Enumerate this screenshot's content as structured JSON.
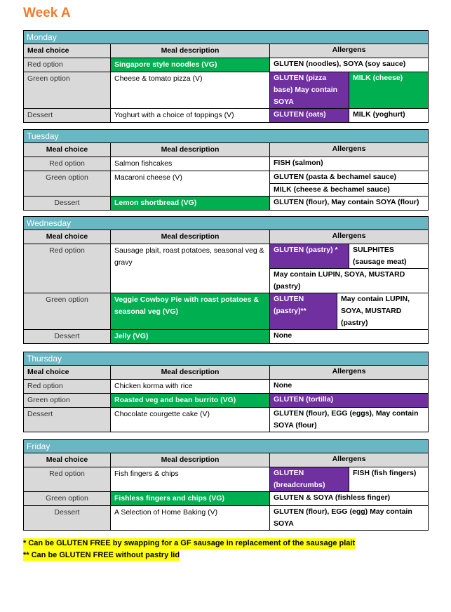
{
  "title": "Week A",
  "columns": [
    "Meal choice",
    "Meal description",
    "Allergens"
  ],
  "colors": {
    "header": "#6ab7c4",
    "purple": "#7030a0",
    "green": "#00b050",
    "title": "#ed7d31",
    "highlight": "#ffff00"
  },
  "days": [
    {
      "name": "Monday",
      "align": "left",
      "rows": [
        {
          "choice": "Red option",
          "desc": "Singapore style noodles (VG)",
          "desc_bg": "green",
          "allergens": [
            [
              {
                "text": "GLUTEN (noodles), SOYA (soy sauce)",
                "bg": "white"
              }
            ]
          ]
        },
        {
          "choice": "Green option",
          "desc": "Cheese & tomato pizza (V)",
          "desc_bg": "white",
          "allergens": [
            [
              {
                "text": "GLUTEN (pizza base) May contain SOYA",
                "bg": "purple"
              },
              {
                "text": "MILK (cheese)",
                "bg": "green"
              }
            ]
          ]
        },
        {
          "choice": "Dessert",
          "desc": "Yoghurt with a choice of toppings (V)",
          "desc_bg": "white",
          "allergens": [
            [
              {
                "text": "GLUTEN (oats)",
                "bg": "purple"
              },
              {
                "text": "MILK (yoghurt)",
                "bg": "white"
              }
            ]
          ]
        }
      ]
    },
    {
      "name": "Tuesday",
      "align": "center",
      "rows": [
        {
          "choice": "Red option",
          "desc": "Salmon fishcakes",
          "desc_bg": "white",
          "allergens": [
            [
              {
                "text": "FISH (salmon)",
                "bg": "white"
              }
            ]
          ]
        },
        {
          "choice": "Green option",
          "desc": "Macaroni cheese (V)",
          "desc_bg": "white",
          "allergens": [
            [
              {
                "text": "GLUTEN (pasta & bechamel sauce)",
                "bg": "white"
              }
            ],
            [
              {
                "text": "MILK (cheese & bechamel sauce)",
                "bg": "white"
              }
            ]
          ]
        },
        {
          "choice": "Dessert",
          "desc": "Lemon shortbread (VG)",
          "desc_bg": "green",
          "allergens": [
            [
              {
                "text": "GLUTEN (flour), May contain SOYA (flour)",
                "bg": "white"
              }
            ]
          ]
        }
      ]
    },
    {
      "name": "Wednesday",
      "align": "center",
      "rows": [
        {
          "choice": "Red option",
          "desc": "Sausage plait, roast potatoes, seasonal veg & gravy",
          "desc_bg": "white",
          "allergens": [
            [
              {
                "text": "GLUTEN (pastry) *",
                "bg": "purple"
              },
              {
                "text": "SULPHITES (sausage meat)",
                "bg": "white"
              }
            ],
            [
              {
                "text": "May contain LUPIN, SOYA, MUSTARD (pastry)",
                "bg": "white"
              }
            ]
          ]
        },
        {
          "choice": "Green option",
          "desc": "Veggie Cowboy Pie with roast potatoes & seasonal veg (VG)",
          "desc_bg": "green",
          "allergens": [
            [
              {
                "text": "GLUTEN (pastry)**",
                "bg": "purple",
                "narrow": true
              },
              {
                "text": "May contain LUPIN, SOYA, MUSTARD (pastry)",
                "bg": "white"
              }
            ]
          ]
        },
        {
          "choice": "Dessert",
          "desc": "Jelly (VG)",
          "desc_bg": "green",
          "allergens": [
            [
              {
                "text": "None",
                "bg": "white"
              }
            ]
          ]
        }
      ]
    },
    {
      "name": "Thursday",
      "align": "left",
      "rows": [
        {
          "choice": "Red option",
          "desc": "Chicken korma with rice",
          "desc_bg": "white",
          "allergens": [
            [
              {
                "text": "None",
                "bg": "white"
              }
            ]
          ]
        },
        {
          "choice": "Green option",
          "desc": "Roasted veg and bean burrito (VG)",
          "desc_bg": "green",
          "allergens": [
            [
              {
                "text": "GLUTEN (tortilla)",
                "bg": "purple"
              }
            ]
          ]
        },
        {
          "choice": "Dessert",
          "desc": "Chocolate courgette cake (V)",
          "desc_bg": "white",
          "allergens": [
            [
              {
                "text": "GLUTEN (flour), EGG (eggs), May contain SOYA (flour)",
                "bg": "white"
              }
            ]
          ]
        }
      ]
    },
    {
      "name": "Friday",
      "align": "center",
      "rows": [
        {
          "choice": "Red option",
          "desc": "Fish fingers & chips",
          "desc_bg": "white",
          "allergens": [
            [
              {
                "text": "GLUTEN (breadcrumbs)",
                "bg": "purple"
              },
              {
                "text": "FISH (fish fingers)",
                "bg": "white"
              }
            ]
          ]
        },
        {
          "choice": "Green option",
          "desc": "Fishless fingers and chips (VG)",
          "desc_bg": "green",
          "allergens": [
            [
              {
                "text": "GLUTEN & SOYA (fishless finger)",
                "bg": "white"
              }
            ]
          ]
        },
        {
          "choice": "Dessert",
          "desc": "A Selection of Home Baking (V)",
          "desc_bg": "white",
          "allergens": [
            [
              {
                "text": "GLUTEN (flour), EGG (egg) May contain SOYA",
                "bg": "white"
              }
            ]
          ]
        }
      ]
    }
  ],
  "notes": [
    "* Can be GLUTEN FREE by swapping for a GF sausage in replacement of the sausage plait",
    "** Can be GLUTEN FREE without pastry lid"
  ]
}
